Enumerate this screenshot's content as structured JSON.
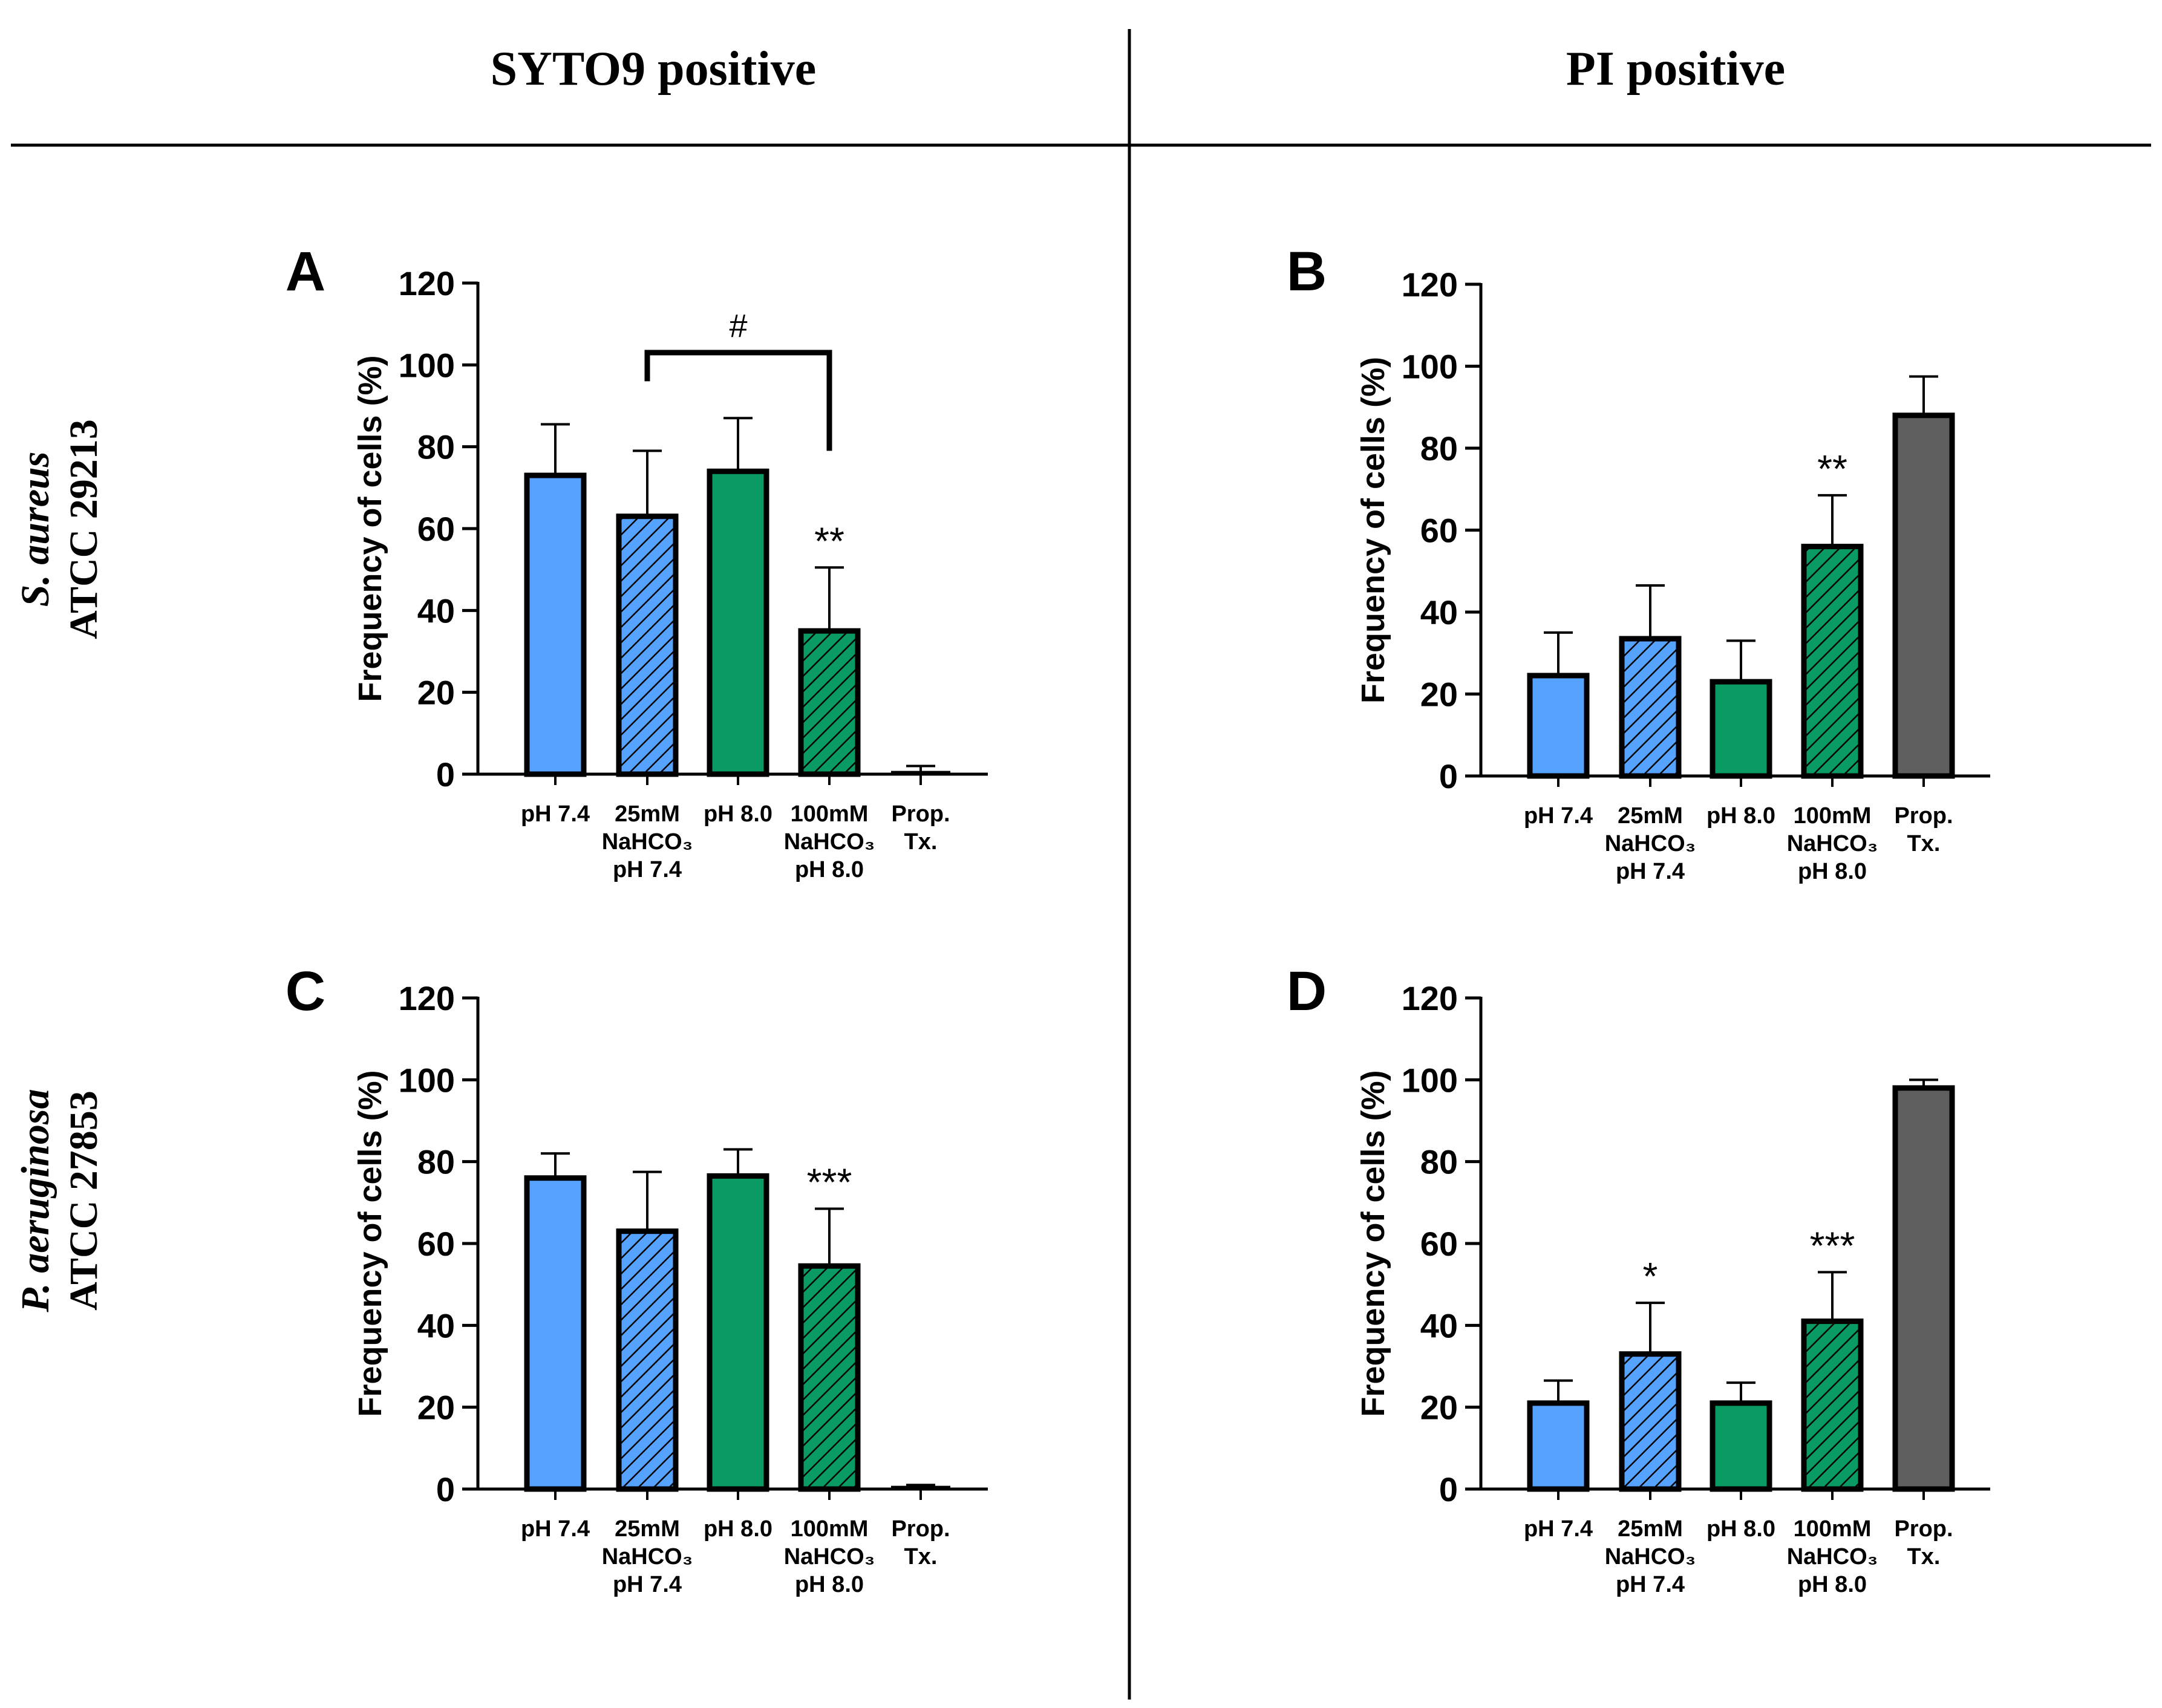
{
  "columns": {
    "left": "SYTO9 positive",
    "right": "PI positive"
  },
  "rows": [
    {
      "species": "S. aureus",
      "strain": "ATCC 29213"
    },
    {
      "species": "P. aeruginosa",
      "strain": "ATCC 27853"
    }
  ],
  "colors": {
    "blue": "#55a2ff",
    "green": "#0a9b64",
    "gray": "#5f5f5f",
    "outline": "#000000"
  },
  "category_labels": [
    [
      "pH 7.4"
    ],
    [
      "25mM",
      "NaHCO₃",
      "pH 7.4"
    ],
    [
      "pH 8.0"
    ],
    [
      "100mM",
      "NaHCO₃",
      "pH 8.0"
    ],
    [
      "Prop.",
      "Tx."
    ]
  ],
  "chart_data": [
    {
      "panel": "A",
      "type": "bar",
      "ylabel": "Frequency of cells (%)",
      "ylim": [
        0,
        120
      ],
      "yticks": [
        0,
        20,
        40,
        60,
        80,
        100,
        120
      ],
      "categories": [
        "pH 7.4",
        "25mM NaHCO3 pH 7.4",
        "pH 8.0",
        "100mM NaHCO3 pH 8.0",
        "Prop. Tx."
      ],
      "values": [
        73,
        63,
        74,
        35,
        0.5
      ],
      "errors": [
        12.5,
        16,
        13,
        15.5,
        1.5
      ],
      "fills": [
        "blue",
        "blue-hatched",
        "green",
        "green-hatched",
        "gray"
      ],
      "annotations": [
        {
          "category_index": 3,
          "text": "**"
        },
        {
          "bracket_from": 1,
          "bracket_to": 3,
          "text": "#"
        }
      ]
    },
    {
      "panel": "B",
      "type": "bar",
      "ylabel": "Frequency of cells (%)",
      "ylim": [
        0,
        120
      ],
      "yticks": [
        0,
        20,
        40,
        60,
        80,
        100,
        120
      ],
      "categories": [
        "pH 7.4",
        "25mM NaHCO3 pH 7.4",
        "pH 8.0",
        "100mM NaHCO3 pH 8.0",
        "Prop. Tx."
      ],
      "values": [
        24.5,
        33.5,
        23,
        56,
        88
      ],
      "errors": [
        10.5,
        13,
        10,
        12.5,
        9.5
      ],
      "fills": [
        "blue",
        "blue-hatched",
        "green",
        "green-hatched",
        "gray"
      ],
      "annotations": [
        {
          "category_index": 3,
          "text": "**"
        }
      ]
    },
    {
      "panel": "C",
      "type": "bar",
      "ylabel": "Frequency of cells (%)",
      "ylim": [
        0,
        120
      ],
      "yticks": [
        0,
        20,
        40,
        60,
        80,
        100,
        120
      ],
      "categories": [
        "pH 7.4",
        "25mM NaHCO3 pH 7.4",
        "pH 8.0",
        "100mM NaHCO3 pH 8.0",
        "Prop. Tx."
      ],
      "values": [
        76,
        63,
        76.5,
        54.5,
        0.5
      ],
      "errors": [
        6,
        14.5,
        6.5,
        14,
        0.5
      ],
      "fills": [
        "blue",
        "blue-hatched",
        "green",
        "green-hatched",
        "gray"
      ],
      "annotations": [
        {
          "category_index": 3,
          "text": "***"
        }
      ]
    },
    {
      "panel": "D",
      "type": "bar",
      "ylabel": "Frequency of cells (%)",
      "ylim": [
        0,
        120
      ],
      "yticks": [
        0,
        20,
        40,
        60,
        80,
        100,
        120
      ],
      "categories": [
        "pH 7.4",
        "25mM NaHCO3 pH 7.4",
        "pH 8.0",
        "100mM NaHCO3 pH 8.0",
        "Prop. Tx."
      ],
      "values": [
        21,
        33,
        21,
        41,
        98
      ],
      "errors": [
        5.5,
        12.5,
        5,
        12,
        2
      ],
      "fills": [
        "blue",
        "blue-hatched",
        "green",
        "green-hatched",
        "gray"
      ],
      "annotations": [
        {
          "category_index": 1,
          "text": "*"
        },
        {
          "category_index": 3,
          "text": "***"
        }
      ]
    }
  ]
}
